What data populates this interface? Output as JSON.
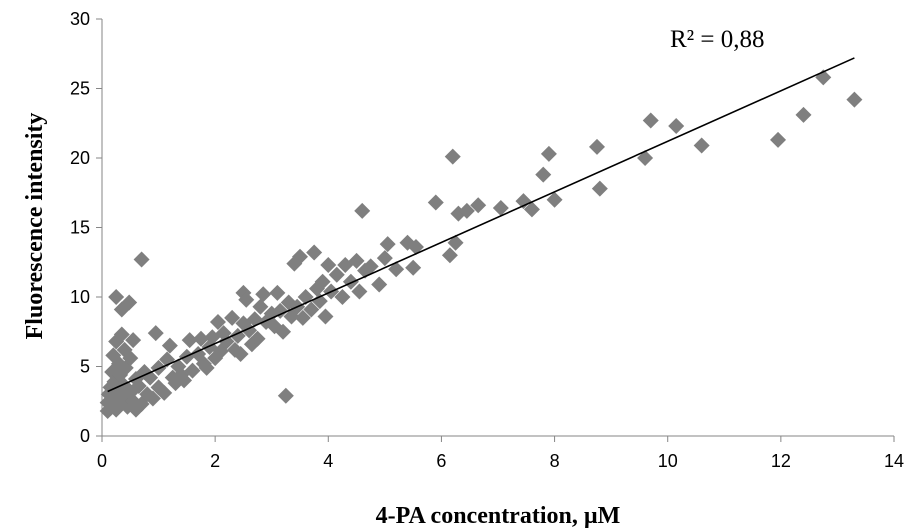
{
  "chart_data": {
    "type": "scatter",
    "title": "",
    "xlabel": "4-PA concentration, µM",
    "ylabel": "Fluorescence intensity",
    "xlim": [
      0,
      14
    ],
    "ylim": [
      0,
      30
    ],
    "xticks": [
      "0",
      "2",
      "4",
      "6",
      "8",
      "10",
      "12",
      "14"
    ],
    "yticks": [
      "0",
      "5",
      "10",
      "15",
      "20",
      "25",
      "30"
    ],
    "grid": false,
    "legend": "none",
    "marker": "diamond",
    "marker_color": "#7f7f7f",
    "trendline": {
      "type": "linear",
      "x": [
        0.1,
        13.3
      ],
      "y": [
        3.2,
        27.2
      ],
      "color": "#000000"
    },
    "annotation": "R² = 0,88",
    "series": [
      {
        "points": [
          [
            0.1,
            1.8
          ],
          [
            0.1,
            2.4
          ],
          [
            0.12,
            3.0
          ],
          [
            0.15,
            3.5
          ],
          [
            0.15,
            2.0
          ],
          [
            0.18,
            4.6
          ],
          [
            0.2,
            2.7
          ],
          [
            0.2,
            5.8
          ],
          [
            0.22,
            3.9
          ],
          [
            0.25,
            1.9
          ],
          [
            0.25,
            6.8
          ],
          [
            0.25,
            10.0
          ],
          [
            0.28,
            3.3
          ],
          [
            0.3,
            5.2
          ],
          [
            0.3,
            2.3
          ],
          [
            0.32,
            4.4
          ],
          [
            0.35,
            9.1
          ],
          [
            0.35,
            7.3
          ],
          [
            0.38,
            2.8
          ],
          [
            0.4,
            6.2
          ],
          [
            0.4,
            3.6
          ],
          [
            0.42,
            4.9
          ],
          [
            0.45,
            2.1
          ],
          [
            0.48,
            9.6
          ],
          [
            0.5,
            5.6
          ],
          [
            0.5,
            3.1
          ],
          [
            0.55,
            6.9
          ],
          [
            0.55,
            2.5
          ],
          [
            0.6,
            4.1
          ],
          [
            0.6,
            1.9
          ],
          [
            0.65,
            3.6
          ],
          [
            0.7,
            12.7
          ],
          [
            0.7,
            2.3
          ],
          [
            0.75,
            4.6
          ],
          [
            0.8,
            3.0
          ],
          [
            0.85,
            4.2
          ],
          [
            0.9,
            2.7
          ],
          [
            0.95,
            7.4
          ],
          [
            1.0,
            3.5
          ],
          [
            1.0,
            4.9
          ],
          [
            1.1,
            3.1
          ],
          [
            1.15,
            5.5
          ],
          [
            1.2,
            6.5
          ],
          [
            1.25,
            4.2
          ],
          [
            1.3,
            3.8
          ],
          [
            1.35,
            5.0
          ],
          [
            1.4,
            4.4
          ],
          [
            1.45,
            4.0
          ],
          [
            1.5,
            5.7
          ],
          [
            1.55,
            6.9
          ],
          [
            1.6,
            4.7
          ],
          [
            1.7,
            5.9
          ],
          [
            1.75,
            7.0
          ],
          [
            1.8,
            5.2
          ],
          [
            1.85,
            4.9
          ],
          [
            1.9,
            6.4
          ],
          [
            1.95,
            7.1
          ],
          [
            2.0,
            5.6
          ],
          [
            2.05,
            8.2
          ],
          [
            2.1,
            6.1
          ],
          [
            2.15,
            7.4
          ],
          [
            2.2,
            6.8
          ],
          [
            2.3,
            8.5
          ],
          [
            2.35,
            6.2
          ],
          [
            2.4,
            7.2
          ],
          [
            2.45,
            5.9
          ],
          [
            2.5,
            10.3
          ],
          [
            2.5,
            8.1
          ],
          [
            2.55,
            9.8
          ],
          [
            2.6,
            7.6
          ],
          [
            2.65,
            6.6
          ],
          [
            2.7,
            8.4
          ],
          [
            2.75,
            7.0
          ],
          [
            2.8,
            9.3
          ],
          [
            2.85,
            10.2
          ],
          [
            2.9,
            8.2
          ],
          [
            3.0,
            8.8
          ],
          [
            3.05,
            7.9
          ],
          [
            3.1,
            10.3
          ],
          [
            3.15,
            9.0
          ],
          [
            3.2,
            7.5
          ],
          [
            3.25,
            2.9
          ],
          [
            3.3,
            9.6
          ],
          [
            3.35,
            8.6
          ],
          [
            3.4,
            12.4
          ],
          [
            3.45,
            9.3
          ],
          [
            3.5,
            12.9
          ],
          [
            3.55,
            8.5
          ],
          [
            3.6,
            10.0
          ],
          [
            3.7,
            9.1
          ],
          [
            3.75,
            13.2
          ],
          [
            3.8,
            10.6
          ],
          [
            3.85,
            9.7
          ],
          [
            3.9,
            11.1
          ],
          [
            3.95,
            8.6
          ],
          [
            4.0,
            12.3
          ],
          [
            4.05,
            10.4
          ],
          [
            4.15,
            11.6
          ],
          [
            4.25,
            10.0
          ],
          [
            4.3,
            12.3
          ],
          [
            4.4,
            11.1
          ],
          [
            4.5,
            12.6
          ],
          [
            4.55,
            10.4
          ],
          [
            4.6,
            16.2
          ],
          [
            4.65,
            11.9
          ],
          [
            4.75,
            12.2
          ],
          [
            4.9,
            10.9
          ],
          [
            5.0,
            12.8
          ],
          [
            5.05,
            13.8
          ],
          [
            5.2,
            12.0
          ],
          [
            5.4,
            13.9
          ],
          [
            5.5,
            12.1
          ],
          [
            5.55,
            13.6
          ],
          [
            5.9,
            16.8
          ],
          [
            6.15,
            13.0
          ],
          [
            6.2,
            20.1
          ],
          [
            6.25,
            13.9
          ],
          [
            6.3,
            16.0
          ],
          [
            6.45,
            16.2
          ],
          [
            6.65,
            16.6
          ],
          [
            7.05,
            16.4
          ],
          [
            7.45,
            16.9
          ],
          [
            7.6,
            16.3
          ],
          [
            7.8,
            18.8
          ],
          [
            7.9,
            20.3
          ],
          [
            8.0,
            17.0
          ],
          [
            8.75,
            20.8
          ],
          [
            8.8,
            17.8
          ],
          [
            9.6,
            20.0
          ],
          [
            9.7,
            22.7
          ],
          [
            10.15,
            22.3
          ],
          [
            10.6,
            20.9
          ],
          [
            11.95,
            21.3
          ],
          [
            12.4,
            23.1
          ],
          [
            12.75,
            25.8
          ],
          [
            13.3,
            24.2
          ]
        ]
      }
    ]
  }
}
